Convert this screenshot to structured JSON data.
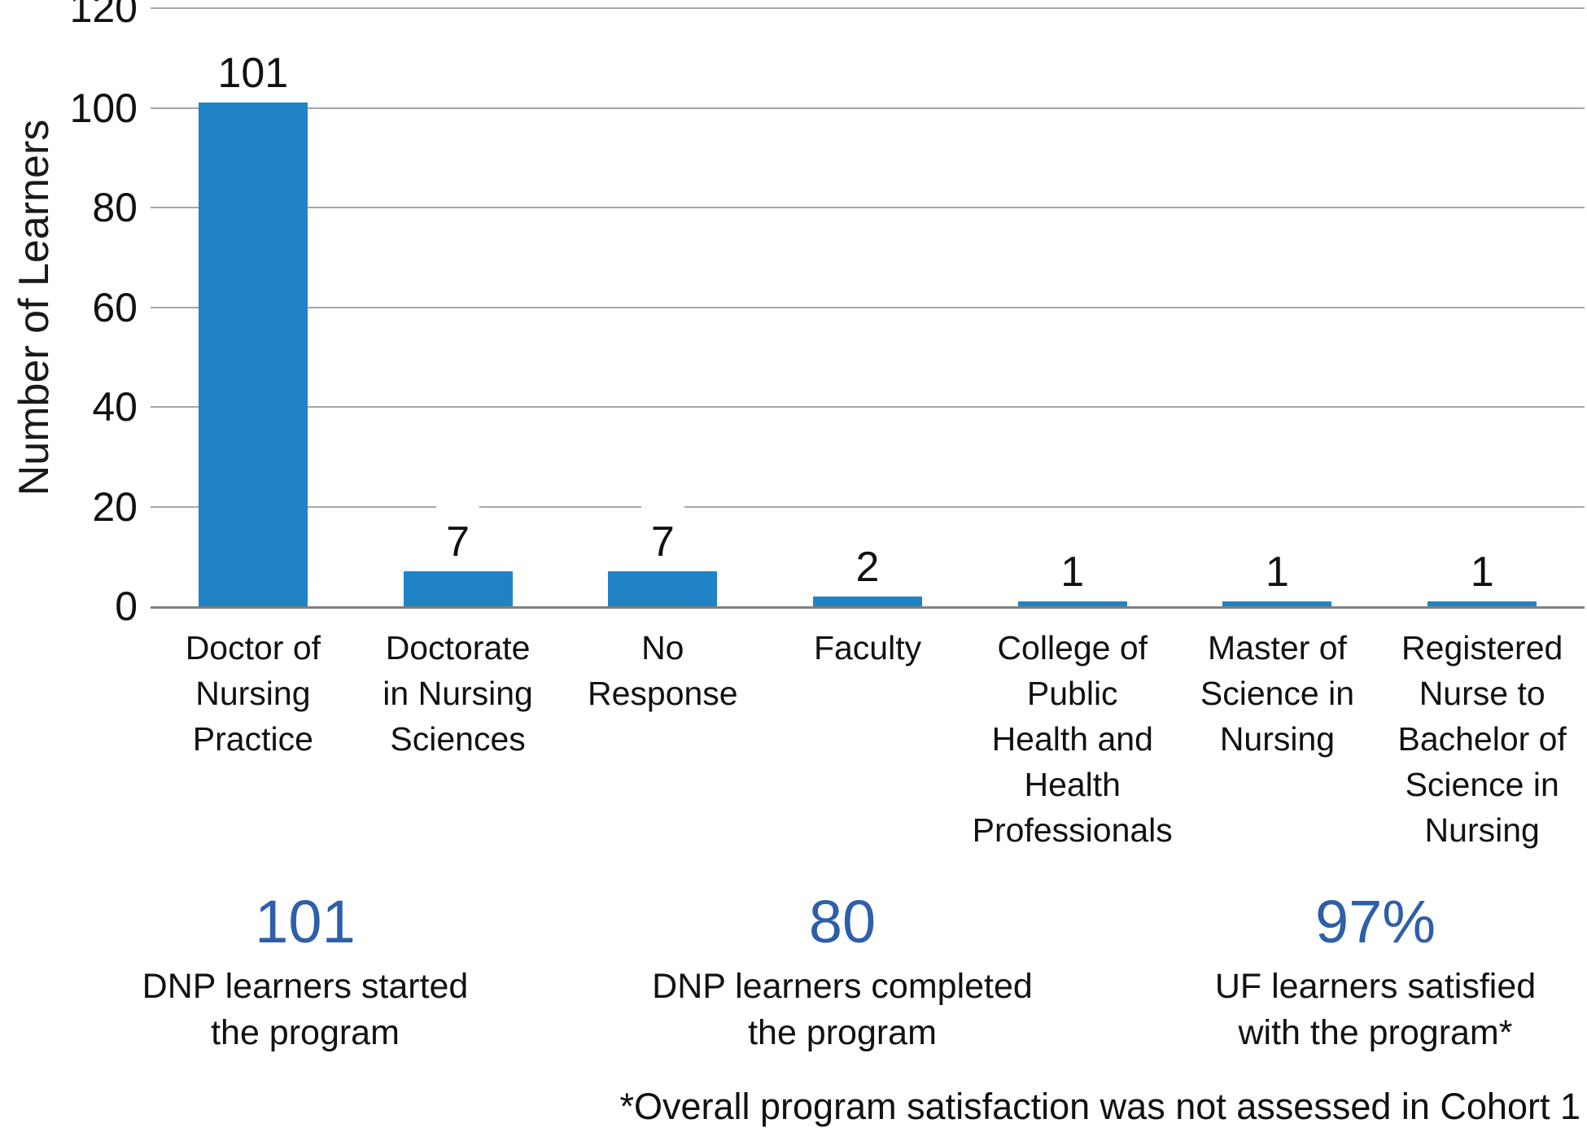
{
  "chart_data": {
    "type": "bar",
    "title": "",
    "xlabel": "",
    "ylabel": "Number of Learners",
    "ylim": [
      0,
      120
    ],
    "yticks": [
      "0",
      "20",
      "40",
      "60",
      "80",
      "100",
      "120"
    ],
    "grid": "horizontal",
    "legend_position": "none",
    "bar_color": "#1f83c5",
    "gridline_color": "#a6a6a6",
    "axis_line_color": "#7f7f7f",
    "categories": [
      "Doctor of\nNursing\nPractice",
      "Doctorate\nin Nursing\nSciences",
      "No\nResponse",
      "Faculty",
      "College of\nPublic\nHealth and\nHealth\nProfessionals",
      "Master of\nScience in\nNursing",
      "Registered\nNurse to\nBachelor of\nScience in\nNursing"
    ],
    "values": [
      101,
      7,
      7,
      2,
      1,
      1,
      1
    ]
  },
  "summary": {
    "accent_color": "#2e5fa9",
    "items": [
      {
        "value": "101",
        "label": "DNP learners started\nthe program"
      },
      {
        "value": "80",
        "label": "DNP learners completed\nthe program"
      },
      {
        "value": "97%",
        "label": "UF learners satisfied\nwith the program*"
      }
    ]
  },
  "footnote": "*Overall program satisfaction was not assessed in Cohort 1"
}
